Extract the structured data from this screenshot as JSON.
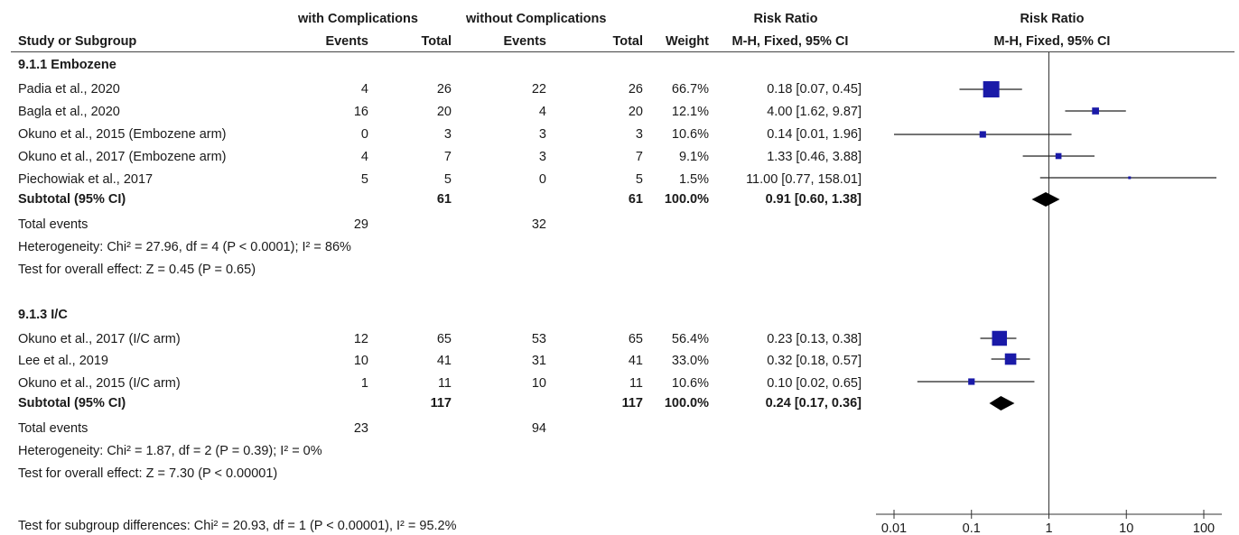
{
  "header": {
    "group_a": "with Complications",
    "group_b": "without Complications",
    "rr_col": "Risk Ratio",
    "rr_plot": "Risk Ratio",
    "study_col": "Study or Subgroup",
    "events_a": "Events",
    "total_a": "Total",
    "events_b": "Events",
    "total_b": "Total",
    "weight": "Weight",
    "method_col": "M-H, Fixed, 95% CI",
    "method_plot": "M-H, Fixed, 95% CI"
  },
  "subgroups": [
    {
      "title": "9.1.1 Embozene",
      "studies": [
        {
          "name": "Padia et al., 2020",
          "ev_a": "4",
          "tot_a": "26",
          "ev_b": "22",
          "tot_b": "26",
          "weight": "66.7%",
          "ci": "0.18 [0.07, 0.45]"
        },
        {
          "name": "Bagla et al., 2020",
          "ev_a": "16",
          "tot_a": "20",
          "ev_b": "4",
          "tot_b": "20",
          "weight": "12.1%",
          "ci": "4.00 [1.62, 9.87]"
        },
        {
          "name": "Okuno et al., 2015 (Embozene arm)",
          "ev_a": "0",
          "tot_a": "3",
          "ev_b": "3",
          "tot_b": "3",
          "weight": "10.6%",
          "ci": "0.14 [0.01, 1.96]"
        },
        {
          "name": "Okuno et al., 2017 (Embozene arm)",
          "ev_a": "4",
          "tot_a": "7",
          "ev_b": "3",
          "tot_b": "7",
          "weight": "9.1%",
          "ci": "1.33 [0.46, 3.88]"
        },
        {
          "name": "Piechowiak et al., 2017",
          "ev_a": "5",
          "tot_a": "5",
          "ev_b": "0",
          "tot_b": "5",
          "weight": "1.5%",
          "ci": "11.00 [0.77, 158.01]"
        }
      ],
      "subtotal": {
        "label": "Subtotal (95% CI)",
        "tot_a": "61",
        "tot_b": "61",
        "weight": "100.0%",
        "ci": "0.91 [0.60, 1.38]"
      },
      "total_events": {
        "label": "Total events",
        "ev_a": "29",
        "ev_b": "32"
      },
      "heterogeneity": "Heterogeneity: Chi² = 27.96, df = 4 (P < 0.0001); I² = 86%",
      "overall": "Test for overall effect: Z = 0.45 (P = 0.65)"
    },
    {
      "title": "9.1.3 I/C",
      "studies": [
        {
          "name": "Okuno et al., 2017 (I/C arm)",
          "ev_a": "12",
          "tot_a": "65",
          "ev_b": "53",
          "tot_b": "65",
          "weight": "56.4%",
          "ci": "0.23 [0.13, 0.38]"
        },
        {
          "name": "Lee et al., 2019",
          "ev_a": "10",
          "tot_a": "41",
          "ev_b": "31",
          "tot_b": "41",
          "weight": "33.0%",
          "ci": "0.32 [0.18, 0.57]"
        },
        {
          "name": "Okuno et al., 2015 (I/C arm)",
          "ev_a": "1",
          "tot_a": "11",
          "ev_b": "10",
          "tot_b": "11",
          "weight": "10.6%",
          "ci": "0.10 [0.02, 0.65]"
        }
      ],
      "subtotal": {
        "label": "Subtotal (95% CI)",
        "tot_a": "117",
        "tot_b": "117",
        "weight": "100.0%",
        "ci": "0.24 [0.17, 0.36]"
      },
      "total_events": {
        "label": "Total events",
        "ev_a": "23",
        "ev_b": "94"
      },
      "heterogeneity": "Heterogeneity: Chi² = 1.87, df = 2 (P = 0.39); I² = 0%",
      "overall": "Test for overall effect: Z = 7.30 (P < 0.00001)"
    }
  ],
  "footer": "Test for subgroup differences: Chi² = 20.93, df = 1 (P < 0.00001), I² = 95.2%",
  "colors": {
    "marker": "#1a1aa8",
    "line": "#222222",
    "diamond": "#000000"
  },
  "chart_data": {
    "type": "forest",
    "scale": "log",
    "xlim": [
      0.01,
      100
    ],
    "xticks": [
      "0.01",
      "0.1",
      "1",
      "10",
      "100"
    ],
    "reference_line": 1,
    "series": [
      {
        "name": "9.1.1 Embozene",
        "points": [
          {
            "study": "Padia et al., 2020",
            "rr": 0.18,
            "lo": 0.07,
            "hi": 0.45,
            "weight": 66.7
          },
          {
            "study": "Bagla et al., 2020",
            "rr": 4.0,
            "lo": 1.62,
            "hi": 9.87,
            "weight": 12.1
          },
          {
            "study": "Okuno et al., 2015 (Embozene arm)",
            "rr": 0.14,
            "lo": 0.01,
            "hi": 1.96,
            "weight": 10.6
          },
          {
            "study": "Okuno et al., 2017 (Embozene arm)",
            "rr": 1.33,
            "lo": 0.46,
            "hi": 3.88,
            "weight": 9.1
          },
          {
            "study": "Piechowiak et al., 2017",
            "rr": 11.0,
            "lo": 0.77,
            "hi": 158.01,
            "weight": 1.5
          }
        ],
        "subtotal": {
          "rr": 0.91,
          "lo": 0.6,
          "hi": 1.38
        }
      },
      {
        "name": "9.1.3 I/C",
        "points": [
          {
            "study": "Okuno et al., 2017 (I/C arm)",
            "rr": 0.23,
            "lo": 0.13,
            "hi": 0.38,
            "weight": 56.4
          },
          {
            "study": "Lee et al., 2019",
            "rr": 0.32,
            "lo": 0.18,
            "hi": 0.57,
            "weight": 33.0
          },
          {
            "study": "Okuno et al., 2015 (I/C arm)",
            "rr": 0.1,
            "lo": 0.02,
            "hi": 0.65,
            "weight": 10.6
          }
        ],
        "subtotal": {
          "rr": 0.24,
          "lo": 0.17,
          "hi": 0.36
        }
      }
    ]
  }
}
